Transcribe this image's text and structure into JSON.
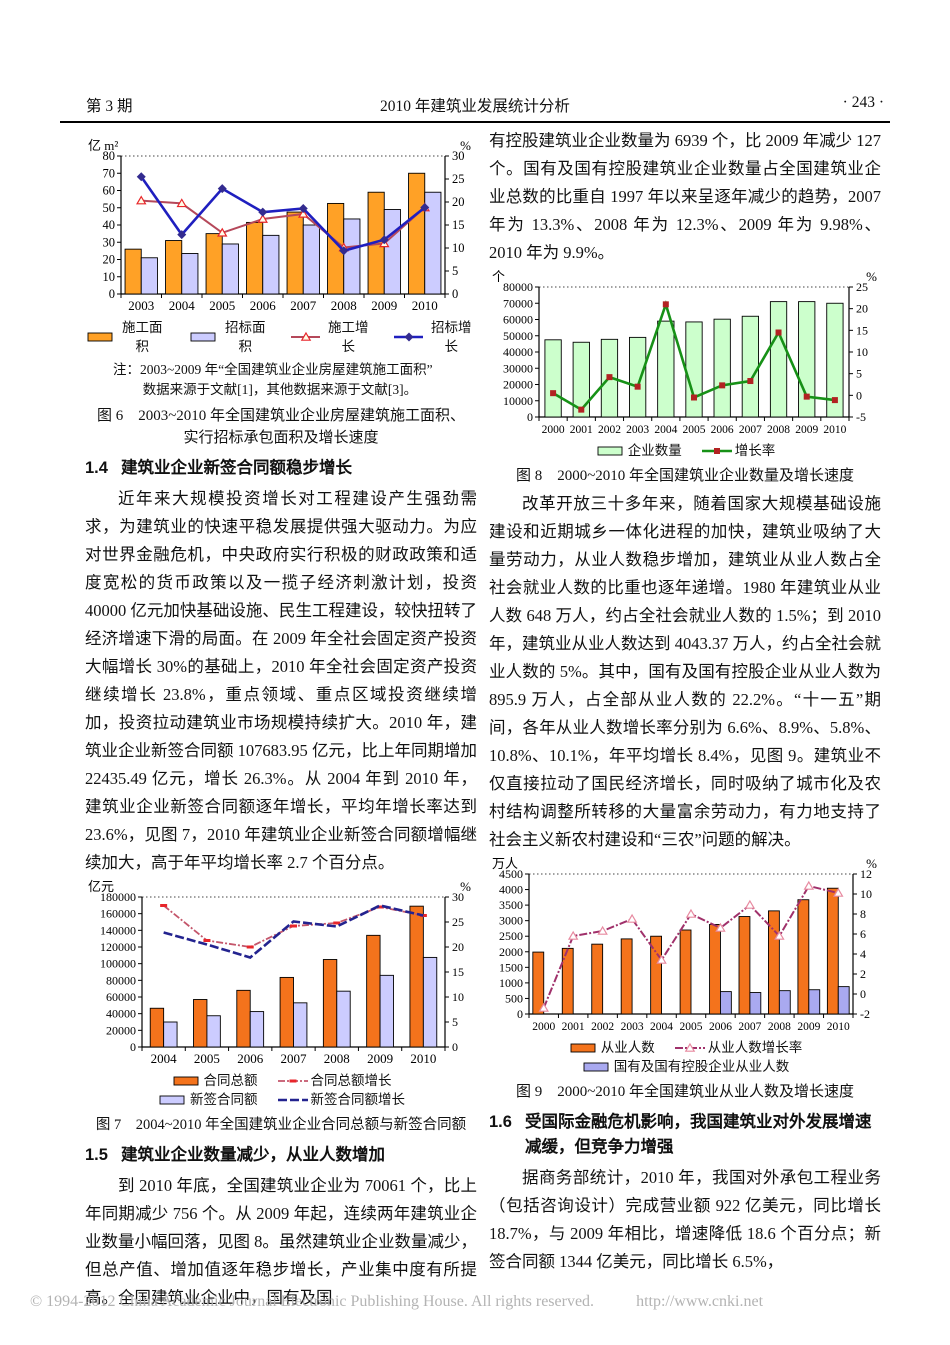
{
  "header": {
    "issue": "第 3 期",
    "title": "2010 年建筑业发展统计分析",
    "page": "· 243 ·"
  },
  "left": {
    "figure6_note1": "注：2003~2009 年“全国建筑业企业房屋建筑施工面积”",
    "figure6_note2": "数据来源于文献[1]，其他数据来源于文献[3]。",
    "figure6_caption1": "图 6　2003~2010 年全国建筑业企业房屋建筑施工面积、",
    "figure6_caption2": "实行招标承包面积及增长速度",
    "sec14": {
      "num": "1.4",
      "title": "建筑业企业新签合同额稳步增长"
    },
    "para14": "近年来大规模投资增长对工程建设产生强劲需求，为建筑业的快速平稳发展提供强大驱动力。为应对世界金融危机，中央政府实行积极的财政政策和适度宽松的货币政策以及一揽子经济刺激计划，投资 40000 亿元加快基础设施、民生工程建设，较快扭转了经济增速下滑的局面。在 2009 年全社会固定资产投资大幅增长 30%的基础上，2010 年全社会固定资产投资继续增长 23.8%，重点领域、重点区域投资继续增加，投资拉动建筑业市场规模持续扩大。2010 年，建筑业企业新签合同额 107683.95 亿元，比上年同期增加 22435.49 亿元，增长 26.3%。从 2004 年到 2010 年，建筑业企业新签合同额逐年增长，平均年增长率达到 23.6%，见图 7，2010 年建筑业企业新签合同额增幅继续加大，高于年平均增长率 2.7 个百分点。",
    "figure7_caption": "图 7　2004~2010 年全国建筑业企业合同总额与新签合同额",
    "sec15": {
      "num": "1.5",
      "title": "建筑业企业数量减少，从业人数增加"
    },
    "para15": "到 2010 年底，全国建筑业企业为 70061 个，比上年同期减少 756 个。从 2009 年起，连续两年建筑业企业数量小幅回落，见图 8。虽然建筑业企业数量减少，但总产值、增加值逐年稳步增长，产业集中度有所提高。全国建筑业企业中，国有及国"
  },
  "right": {
    "para15cont": "有控股建筑业企业数量为 6939 个，比 2009 年减少 127 个。国有及国有控股建筑业企业数量占全国建筑业企业总数的比重自 1997 年以来呈逐年减少的趋势，2007 年为 13.3%、2008 年为 12.3%、2009 年为 9.98%、2010 年为 9.9%。",
    "figure8_caption": "图 8　2000~2010 年全国建筑业企业数量及增长速度",
    "para_emp": "改革开放三十多年来，随着国家大规模基础设施建设和近期城乡一体化进程的加快，建筑业吸纳了大量劳动力，从业人数稳步增加，建筑业从业人数占全社会就业人数的比重也逐年递增。1980 年建筑业从业人数 648 万人，约占全社会就业人数的 1.5%；到 2010 年，建筑业从业人数达到 4043.37 万人，约占全社会就业人数的 5%。其中，国有及国有控股企业从业人数为 895.9 万人，占全部从业人数的 22.2%。“十一五”期间，各年从业人数增长率分别为 6.6%、8.9%、5.8%、10.8%、10.1%，年平均增长 8.4%，见图 9。建筑业不仅直接拉动了国民经济增长，同时吸纳了城市化及农村结构调整所转移的大量富余劳动力，有力地支持了社会主义新农村建设和“三农”问题的解决。",
    "figure9_caption": "图 9　2000~2010 年全国建筑业从业人数及增长速度",
    "sec16": {
      "num": "1.6",
      "title": "受国际金融危机影响，我国建筑业对外发展增速减缓，但竞争力增强"
    },
    "para16": "据商务部统计，2010 年，我国对外承包工程业务（包括咨询设计）完成营业额 922 亿美元，同比增长 18.7%，与 2009 年相比，增速降低 18.6 个百分点；新签合同额 1344 亿美元，同比增长 6.5%，"
  },
  "footer": {
    "copyright": "© 1994-2012 China Academic Journal Electronic Publishing House. All rights reserved.",
    "url": "http://www.cnki.net"
  },
  "chart_data": [
    {
      "name": "figure6",
      "type": "bar+line",
      "unit_left": "亿 m²",
      "unit_right": "%",
      "categories": [
        "2003",
        "2004",
        "2005",
        "2006",
        "2007",
        "2008",
        "2009",
        "2010"
      ],
      "left_axis": {
        "min": 0,
        "max": 80,
        "step": 10
      },
      "right_axis": {
        "min": 0,
        "max": 30,
        "step": 5
      },
      "bar_series": [
        {
          "name": "施工面积",
          "color": "#FFA126",
          "values": [
            26,
            31,
            35,
            41.5,
            47.5,
            52.5,
            59,
            70
          ]
        },
        {
          "name": "招标面积",
          "color": "#CCCCFF",
          "values": [
            21,
            23.5,
            29,
            34,
            40,
            43.5,
            49,
            59
          ]
        }
      ],
      "line_series": [
        {
          "name": "施工增长",
          "color": "#B5485A",
          "width": 2,
          "marker": "triangle",
          "marker_color": "#E8262B",
          "marker_fill": "#FFFDE8",
          "values": [
            20.3,
            19.7,
            13.3,
            16.3,
            17.4,
            10.1,
            11,
            18.8
          ]
        },
        {
          "name": "招标增长",
          "color": "#1F1FBF",
          "width": 2.6,
          "marker": "diamond",
          "marker_color": "#332B8F",
          "values": [
            25.5,
            12.9,
            22.9,
            17.8,
            18.6,
            9.4,
            11.8,
            18.8
          ]
        }
      ],
      "legend_rows": [
        [
          "bar:0",
          "bar:1",
          "line:0",
          "line:1"
        ]
      ]
    },
    {
      "name": "figure7",
      "type": "bar+line",
      "unit_left": "亿元",
      "unit_right": "%",
      "categories": [
        "2004",
        "2005",
        "2006",
        "2007",
        "2008",
        "2009",
        "2010"
      ],
      "left_axis": {
        "min": 0,
        "max": 180000,
        "step": 20000
      },
      "right_axis": {
        "min": 0,
        "max": 30,
        "step": 5
      },
      "bar_series": [
        {
          "name": "合同总额",
          "color": "#F4731C",
          "values": [
            46500,
            57000,
            68000,
            83500,
            105000,
            134000,
            169000
          ]
        },
        {
          "name": "新签合同额",
          "color": "#CCCCFF",
          "values": [
            30000,
            37500,
            42500,
            53000,
            67000,
            86000,
            107500
          ]
        }
      ],
      "line_series": [
        {
          "name": "合同总额增长",
          "color": "#C4566B",
          "width": 1.8,
          "dash": "7,2,2,2",
          "marker": "dash",
          "marker_color": "#E8262B",
          "values": [
            28.3,
            21.3,
            20,
            24.2,
            24.8,
            28,
            26.3
          ]
        },
        {
          "name": "新签合同额增长",
          "color": "#23238F",
          "width": 2.6,
          "dash": "9,3",
          "marker": "none",
          "values": [
            22.9,
            20.5,
            17.9,
            25.1,
            24.1,
            28.3,
            26.3
          ]
        }
      ],
      "legend_rows": [
        [
          "bar:0",
          "line:0"
        ],
        [
          "bar:1",
          "line:1"
        ]
      ]
    },
    {
      "name": "figure8",
      "type": "bar+line",
      "unit_left": "个",
      "unit_right": "%",
      "categories": [
        "2000",
        "2001",
        "2002",
        "2003",
        "2004",
        "2005",
        "2006",
        "2007",
        "2008",
        "2009",
        "2010"
      ],
      "left_axis": {
        "min": 0,
        "max": 80000,
        "step": 10000
      },
      "right_axis": {
        "min": -5,
        "max": 25,
        "step": 5
      },
      "bar_series": [
        {
          "name": "企业数量",
          "color": "#CCFFCC",
          "values": [
            47500,
            46000,
            47800,
            49000,
            59000,
            58500,
            60200,
            62000,
            71000,
            71000,
            70000
          ]
        }
      ],
      "line_series": [
        {
          "name": "增长率",
          "color": "#179117",
          "width": 2.6,
          "marker": "square",
          "marker_color": "#B22222",
          "values": [
            0.5,
            -3.3,
            4.2,
            2,
            21,
            -0.5,
            2.3,
            3.3,
            14.5,
            -0.3,
            -1.1
          ]
        }
      ],
      "legend_rows": [
        [
          "bar:0",
          "line:0"
        ]
      ]
    },
    {
      "name": "figure9",
      "type": "bar+line",
      "unit_left": "万人",
      "unit_right": "%",
      "categories": [
        "2000",
        "2001",
        "2002",
        "2003",
        "2004",
        "2005",
        "2006",
        "2007",
        "2008",
        "2009",
        "2010"
      ],
      "left_axis": {
        "min": 0,
        "max": 4500,
        "step": 500
      },
      "right_axis": {
        "min": -2,
        "max": 12,
        "step": 2
      },
      "bar_series": [
        {
          "name": "从业人数",
          "color": "#F4731C",
          "values": [
            1990,
            2110,
            2245,
            2414,
            2500,
            2700,
            2878,
            3133,
            3315,
            3673,
            4043
          ]
        },
        {
          "name": "国有及国有控股企业从业人数",
          "color": "#A9A9F0",
          "values": [
            null,
            null,
            null,
            null,
            null,
            null,
            720,
            690,
            750,
            780,
            880
          ]
        }
      ],
      "line_series": [
        {
          "name": "从业人数增长率",
          "color": "#A0316B",
          "width": 2,
          "dash": "8,2,2,2",
          "marker": "triangle",
          "marker_color": "#E78AA0",
          "marker_fill": "#FFFFFF",
          "values": [
            -1.4,
            5.8,
            6.3,
            7.5,
            3.4,
            8,
            6.6,
            8.9,
            5.8,
            10.8,
            10.1
          ]
        }
      ],
      "legend_rows": [
        [
          "bar:0",
          "line:0"
        ],
        [
          "bar:1"
        ]
      ]
    }
  ]
}
